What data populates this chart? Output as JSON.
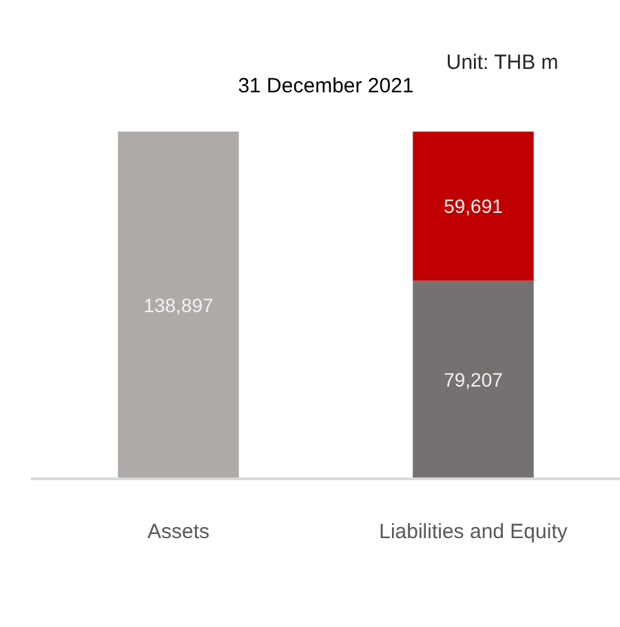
{
  "chart_data": {
    "type": "bar",
    "stacked": true,
    "title": "31 December 2021",
    "annotations": [
      "Unit: THB m"
    ],
    "categories": [
      "Assets",
      "Liabilities and Equity"
    ],
    "series": [
      {
        "colors": [
          "#aeaaa8",
          "#767171"
        ],
        "values": [
          138897,
          79207
        ],
        "value_labels": [
          "138,897",
          "79,207"
        ]
      },
      {
        "color": "#c00000",
        "values": [
          null,
          59691
        ],
        "value_labels": [
          null,
          "59,691"
        ]
      }
    ],
    "grid": false
  }
}
